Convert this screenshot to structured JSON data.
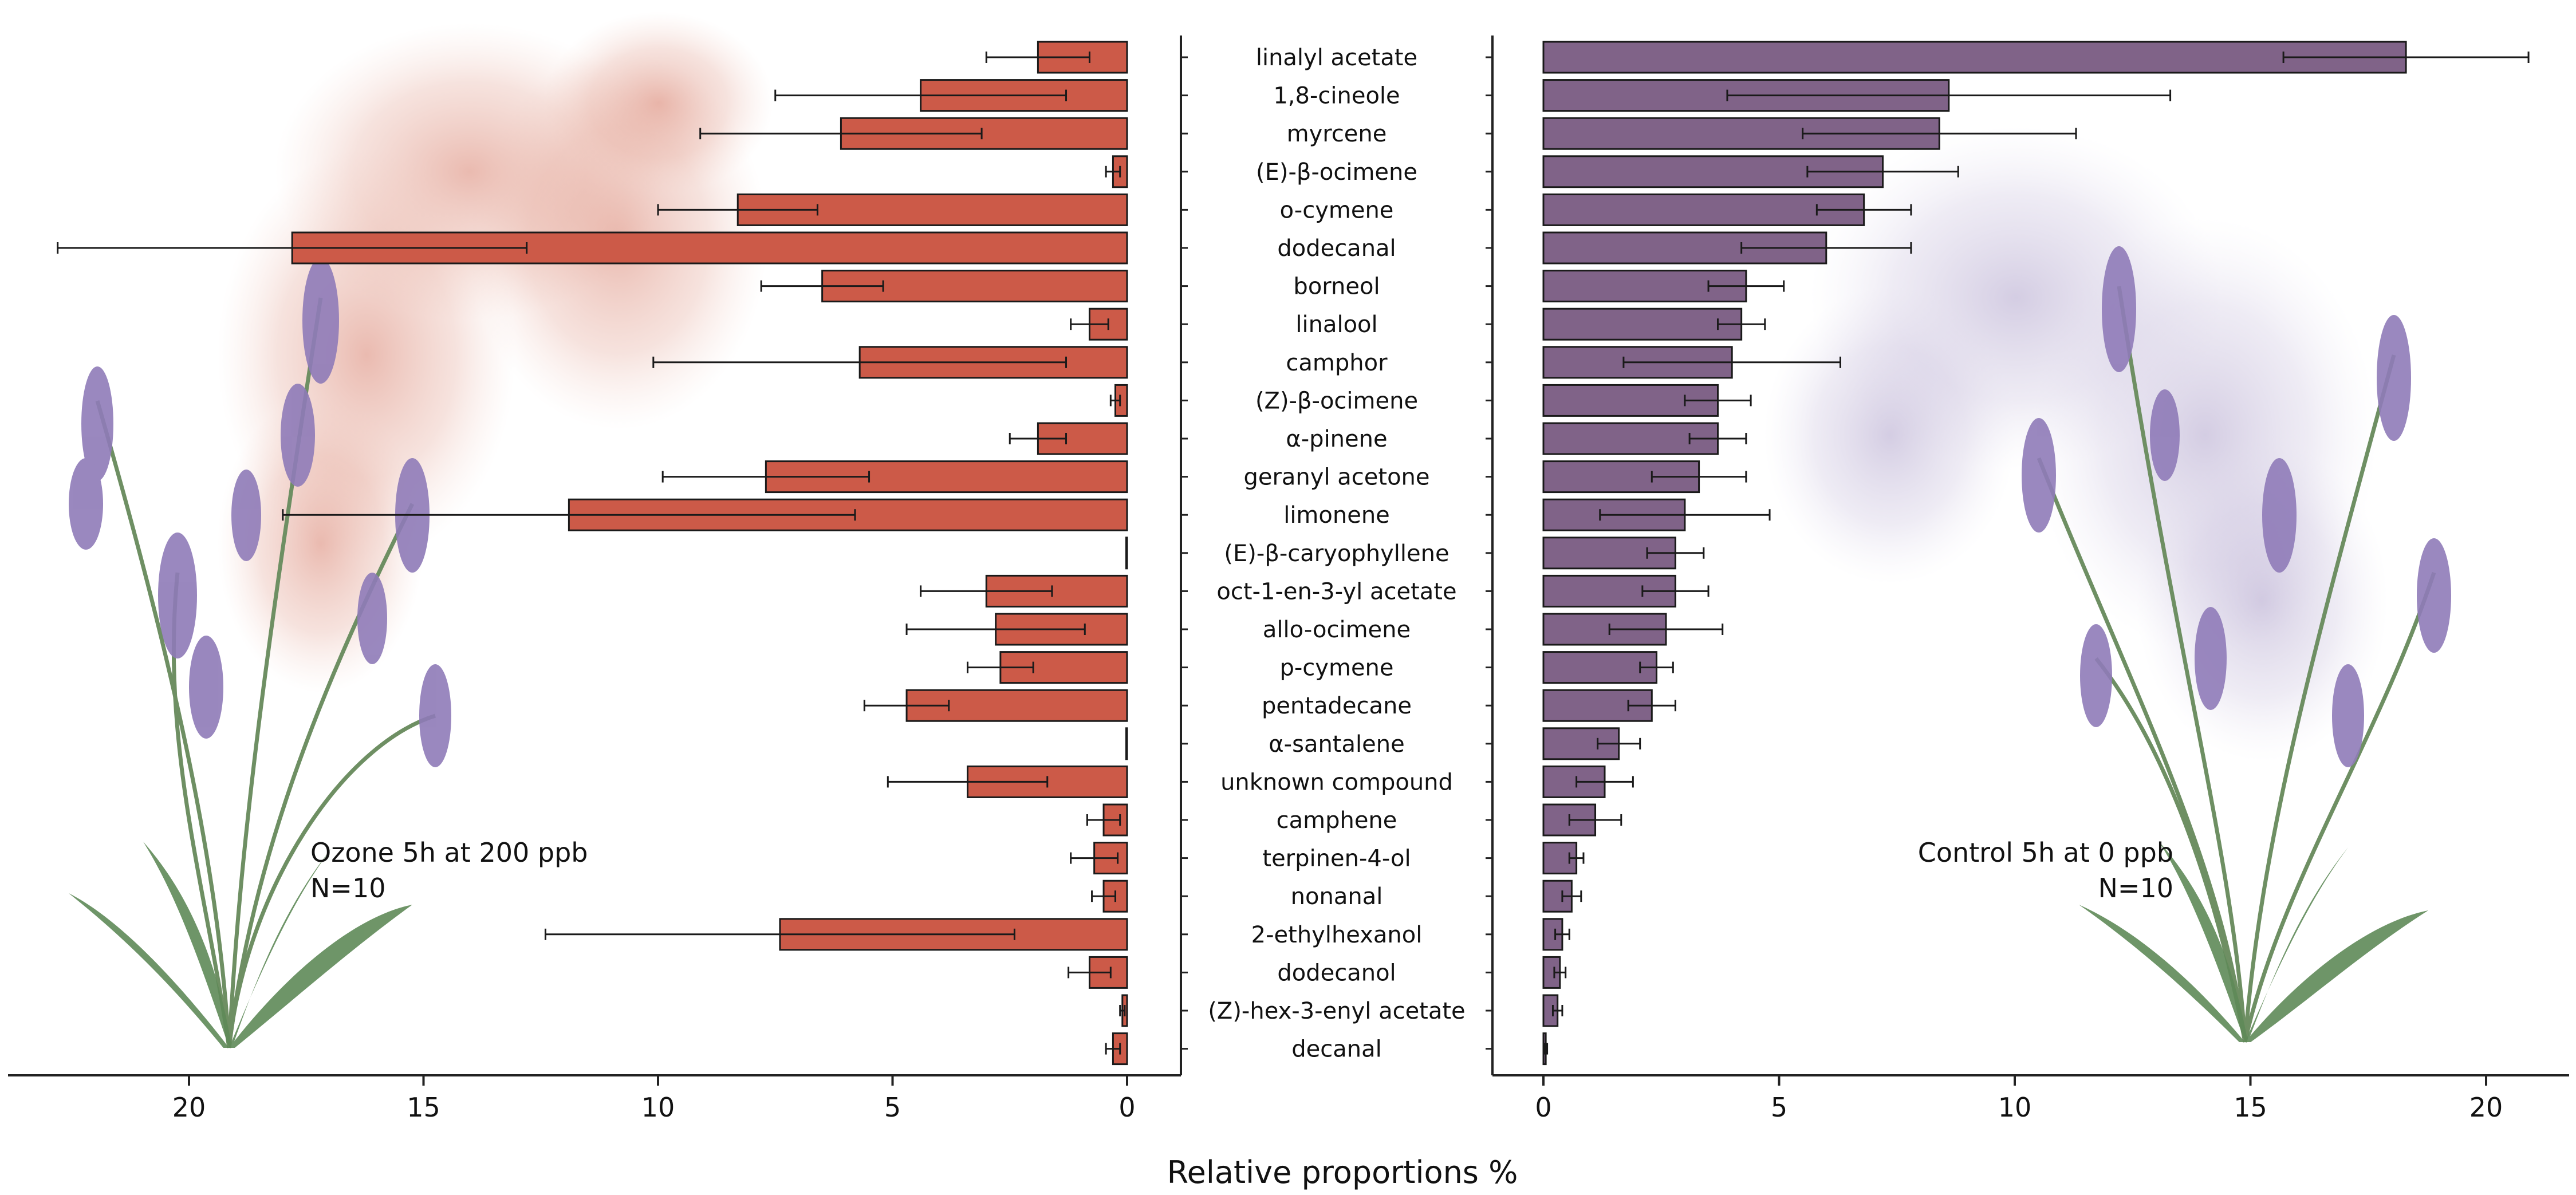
{
  "chart_data": {
    "type": "bar",
    "orientation": "horizontal",
    "xlabel": "Relative proportions %",
    "categories": [
      "linalyl acetate",
      "1,8-cineole",
      "myrcene",
      "(E)-β-ocimene",
      "o-cymene",
      "dodecanal",
      "borneol",
      "linalool",
      "camphor",
      "(Z)-β-ocimene",
      "α-pinene",
      "geranyl acetone",
      "limonene",
      "(E)-β-caryophyllene",
      "oct-1-en-3-yl acetate",
      "allo-ocimene",
      "p-cymene",
      "pentadecane",
      "α-santalene",
      "unknown compound",
      "camphene",
      "terpinen-4-ol",
      "nonanal",
      "2-ethylhexanol",
      "dodecanol",
      "(Z)-hex-3-enyl acetate",
      "decanal"
    ],
    "series": [
      {
        "name": "Ozone 5h at 200 ppb",
        "label_lines": [
          "Ozone 5h at 200 ppb",
          "N=10"
        ],
        "color": "#cc5a48",
        "direction": "left",
        "xlim": [
          0,
          24
        ],
        "ticks": [
          20,
          15,
          10,
          5,
          0
        ],
        "values": [
          1.9,
          4.4,
          6.1,
          0.3,
          8.3,
          17.8,
          6.5,
          0.8,
          5.7,
          0.25,
          1.9,
          7.7,
          11.9,
          0.0,
          3.0,
          2.8,
          2.7,
          4.7,
          0.0,
          3.4,
          0.5,
          0.7,
          0.5,
          7.4,
          0.8,
          0.1,
          0.3
        ],
        "errors": [
          1.1,
          3.1,
          3.0,
          0.15,
          1.7,
          5.0,
          1.3,
          0.4,
          4.4,
          0.1,
          0.6,
          2.2,
          6.1,
          0.0,
          1.4,
          1.9,
          0.7,
          0.9,
          0.0,
          1.7,
          0.35,
          0.5,
          0.25,
          5.0,
          0.45,
          0.05,
          0.15
        ]
      },
      {
        "name": "Control 5h at 0 ppb",
        "label_lines": [
          "Control 5h at 0 ppb",
          "N=10"
        ],
        "color": "#806388",
        "direction": "right",
        "xlim": [
          0,
          21.8
        ],
        "ticks": [
          0,
          5,
          10,
          15,
          20
        ],
        "values": [
          18.3,
          8.6,
          8.4,
          7.2,
          6.8,
          6.0,
          4.3,
          4.2,
          4.0,
          3.7,
          3.7,
          3.3,
          3.0,
          2.8,
          2.8,
          2.6,
          2.4,
          2.3,
          1.6,
          1.3,
          1.1,
          0.7,
          0.6,
          0.4,
          0.35,
          0.3,
          0.05
        ]
      }
    ],
    "control_errors": [
      2.6,
      4.7,
      2.9,
      1.6,
      1.0,
      1.8,
      0.8,
      0.5,
      2.3,
      0.7,
      0.6,
      1.0,
      1.8,
      0.6,
      0.7,
      1.2,
      0.35,
      0.5,
      0.45,
      0.6,
      0.55,
      0.15,
      0.2,
      0.15,
      0.12,
      0.1,
      0.03
    ]
  }
}
